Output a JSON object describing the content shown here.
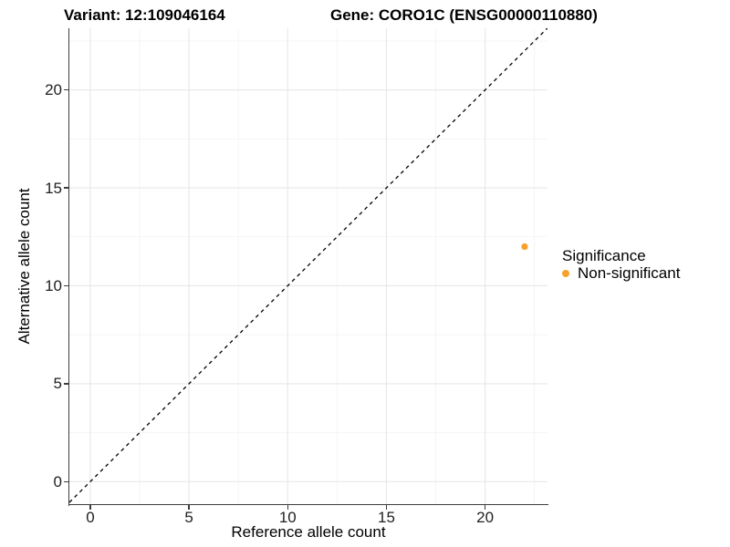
{
  "titles": {
    "variant": "Variant: 12:109046164",
    "gene": "Gene: CORO1C (ENSG00000110880)"
  },
  "axes": {
    "x": {
      "label": "Reference allele count",
      "ticks": [
        0,
        5,
        10,
        15,
        20
      ]
    },
    "y": {
      "label": "Alternative allele count",
      "ticks": [
        0,
        5,
        10,
        15,
        20
      ]
    }
  },
  "legend": {
    "title": "Significance",
    "items": [
      {
        "label": "Non-significant",
        "color": "#F9A02B"
      }
    ]
  },
  "colors": {
    "background": "#FFFFFF",
    "axis_line": "#3D3D3D",
    "grid_major": "#E7E7E7",
    "grid_minor": "#F2F2F2",
    "tick_label": "#1F1F1F",
    "reference_line": "#000000",
    "point": "#F9A02B"
  },
  "chart_data": {
    "type": "scatter",
    "title": "Variant: 12:109046164 | Gene: CORO1C (ENSG00000110880)",
    "xlabel": "Reference allele count",
    "ylabel": "Alternative allele count",
    "xlim": [
      -1.06,
      23.16
    ],
    "ylim": [
      -1.15,
      23.15
    ],
    "grid": {
      "major": [
        0,
        5,
        10,
        15,
        20
      ],
      "minor": [
        2.5,
        7.5,
        12.5,
        17.5,
        22.5
      ],
      "visible": true
    },
    "legend_position": "right",
    "series": [
      {
        "name": "Non-significant",
        "color": "#F9A02B",
        "marker_radius": 3.6,
        "points": [
          {
            "x": 22,
            "y": 12
          }
        ]
      }
    ],
    "reference_line": {
      "kind": "identity",
      "equation": "y = x",
      "style": "dashed",
      "color": "#000000"
    }
  }
}
